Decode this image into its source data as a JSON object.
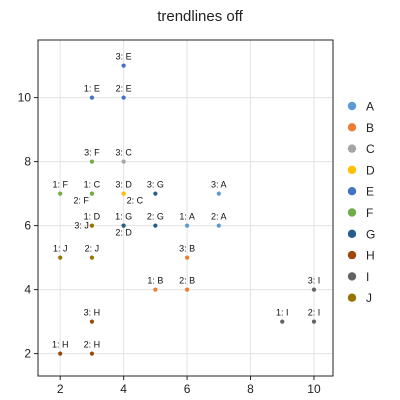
{
  "chart_data": {
    "type": "scatter",
    "title": "trendlines off",
    "xlabel": "",
    "ylabel": "",
    "xlim": [
      1.3,
      10.6
    ],
    "ylim": [
      1.3,
      11.8
    ],
    "xticks": [
      2,
      4,
      6,
      8,
      10
    ],
    "yticks": [
      2,
      4,
      6,
      8,
      10
    ],
    "grid": true,
    "legend_position": "right",
    "series": [
      {
        "name": "A",
        "color": "#5b9bd5",
        "points": [
          {
            "x": 6,
            "y": 6,
            "label": "1: A"
          },
          {
            "x": 7,
            "y": 6,
            "label": "2: A"
          },
          {
            "x": 7,
            "y": 7,
            "label": "3: A"
          }
        ]
      },
      {
        "name": "B",
        "color": "#ed7d31",
        "points": [
          {
            "x": 5,
            "y": 4,
            "label": "1: B"
          },
          {
            "x": 6,
            "y": 4,
            "label": "2: B"
          },
          {
            "x": 6,
            "y": 5,
            "label": "3: B"
          }
        ]
      },
      {
        "name": "C",
        "color": "#a5a5a5",
        "points": [
          {
            "x": 3,
            "y": 7,
            "label": "1: C"
          },
          {
            "x": 4,
            "y": 7,
            "label": "2: C"
          },
          {
            "x": 4,
            "y": 8,
            "label": "3: C"
          }
        ]
      },
      {
        "name": "D",
        "color": "#ffc000",
        "points": [
          {
            "x": 3,
            "y": 6,
            "label": "1: D"
          },
          {
            "x": 4,
            "y": 6,
            "label": "2: D"
          },
          {
            "x": 4,
            "y": 7,
            "label": "3: D"
          }
        ]
      },
      {
        "name": "E",
        "color": "#4472c4",
        "points": [
          {
            "x": 3,
            "y": 10,
            "label": "1: E"
          },
          {
            "x": 4,
            "y": 10,
            "label": "2: E"
          },
          {
            "x": 4,
            "y": 11,
            "label": "3: E"
          }
        ]
      },
      {
        "name": "F",
        "color": "#70ad47",
        "points": [
          {
            "x": 2,
            "y": 7,
            "label": "1: F"
          },
          {
            "x": 3,
            "y": 7,
            "label": "2: F"
          },
          {
            "x": 3,
            "y": 8,
            "label": "3: F"
          }
        ]
      },
      {
        "name": "G",
        "color": "#255e91",
        "points": [
          {
            "x": 4,
            "y": 6,
            "label": "1: G"
          },
          {
            "x": 5,
            "y": 6,
            "label": "2: G"
          },
          {
            "x": 5,
            "y": 7,
            "label": "3: G"
          }
        ]
      },
      {
        "name": "H",
        "color": "#9e480e",
        "points": [
          {
            "x": 2,
            "y": 2,
            "label": "1: H"
          },
          {
            "x": 3,
            "y": 2,
            "label": "2: H"
          },
          {
            "x": 3,
            "y": 3,
            "label": "3: H"
          }
        ]
      },
      {
        "name": "I",
        "color": "#636363",
        "points": [
          {
            "x": 9,
            "y": 3,
            "label": "1: I"
          },
          {
            "x": 10,
            "y": 3,
            "label": "2: I"
          },
          {
            "x": 10,
            "y": 4,
            "label": "3: I"
          }
        ]
      },
      {
        "name": "J",
        "color": "#997300",
        "points": [
          {
            "x": 2,
            "y": 5,
            "label": "1: J"
          },
          {
            "x": 3,
            "y": 5,
            "label": "2: J"
          },
          {
            "x": 3,
            "y": 6,
            "label": "3: J"
          }
        ]
      }
    ]
  }
}
